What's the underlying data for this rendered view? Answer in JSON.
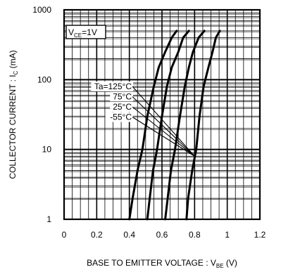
{
  "chart_data": {
    "type": "line",
    "xlabel_main": "BASE TO EMITTER VOLTAGE : V",
    "xlabel_sub": "BE",
    "xlabel_unit": " (V)",
    "ylabel_main": "COLLECTOR CURRENT : I",
    "ylabel_sub": "C",
    "ylabel_unit": " (mA)",
    "xlim": [
      0,
      1.2
    ],
    "ylim": [
      1,
      1000
    ],
    "y_scale": "log",
    "x_ticks": [
      {
        "value": 0,
        "label": "0"
      },
      {
        "value": 0.2,
        "label": "0.2"
      },
      {
        "value": 0.4,
        "label": "0.4"
      },
      {
        "value": 0.6,
        "label": "0.6"
      },
      {
        "value": 0.8,
        "label": "0.8"
      },
      {
        "value": 1.0,
        "label": "1"
      },
      {
        "value": 1.2,
        "label": "1.2"
      }
    ],
    "y_ticks": [
      {
        "value": 1,
        "label": "1"
      },
      {
        "value": 10,
        "label": "10"
      },
      {
        "value": 100,
        "label": "100"
      },
      {
        "value": 1000,
        "label": "1000"
      }
    ],
    "grid": true,
    "condition": {
      "prefix": "V",
      "sub": "CE",
      "suffix": "=1V"
    },
    "legend_labels": [
      "Ta=125°C",
      "75°C",
      "25°C",
      "-55°C"
    ],
    "legend_pointer_value": {
      "x": 0.8,
      "y": 8
    },
    "series": [
      {
        "name": "Ta=125°C",
        "points": [
          [
            0.4,
            1
          ],
          [
            0.42,
            2
          ],
          [
            0.45,
            5
          ],
          [
            0.48,
            10
          ],
          [
            0.51,
            30
          ],
          [
            0.55,
            80
          ],
          [
            0.58,
            150
          ],
          [
            0.62,
            250
          ],
          [
            0.66,
            400
          ],
          [
            0.69,
            500
          ]
        ]
      },
      {
        "name": "75°C",
        "points": [
          [
            0.51,
            1
          ],
          [
            0.525,
            2
          ],
          [
            0.545,
            5
          ],
          [
            0.57,
            10
          ],
          [
            0.6,
            30
          ],
          [
            0.63,
            80
          ],
          [
            0.66,
            150
          ],
          [
            0.7,
            250
          ],
          [
            0.73,
            400
          ],
          [
            0.765,
            500
          ]
        ]
      },
      {
        "name": "25°C",
        "points": [
          [
            0.62,
            1
          ],
          [
            0.635,
            2
          ],
          [
            0.655,
            5
          ],
          [
            0.68,
            10
          ],
          [
            0.71,
            30
          ],
          [
            0.74,
            80
          ],
          [
            0.765,
            150
          ],
          [
            0.79,
            250
          ],
          [
            0.825,
            400
          ],
          [
            0.86,
            500
          ]
        ]
      },
      {
        "name": "-55°C",
        "points": [
          [
            0.75,
            1
          ],
          [
            0.76,
            2
          ],
          [
            0.785,
            5
          ],
          [
            0.81,
            10
          ],
          [
            0.83,
            30
          ],
          [
            0.855,
            80
          ],
          [
            0.885,
            150
          ],
          [
            0.91,
            250
          ],
          [
            0.93,
            400
          ],
          [
            0.955,
            500
          ]
        ]
      }
    ]
  }
}
